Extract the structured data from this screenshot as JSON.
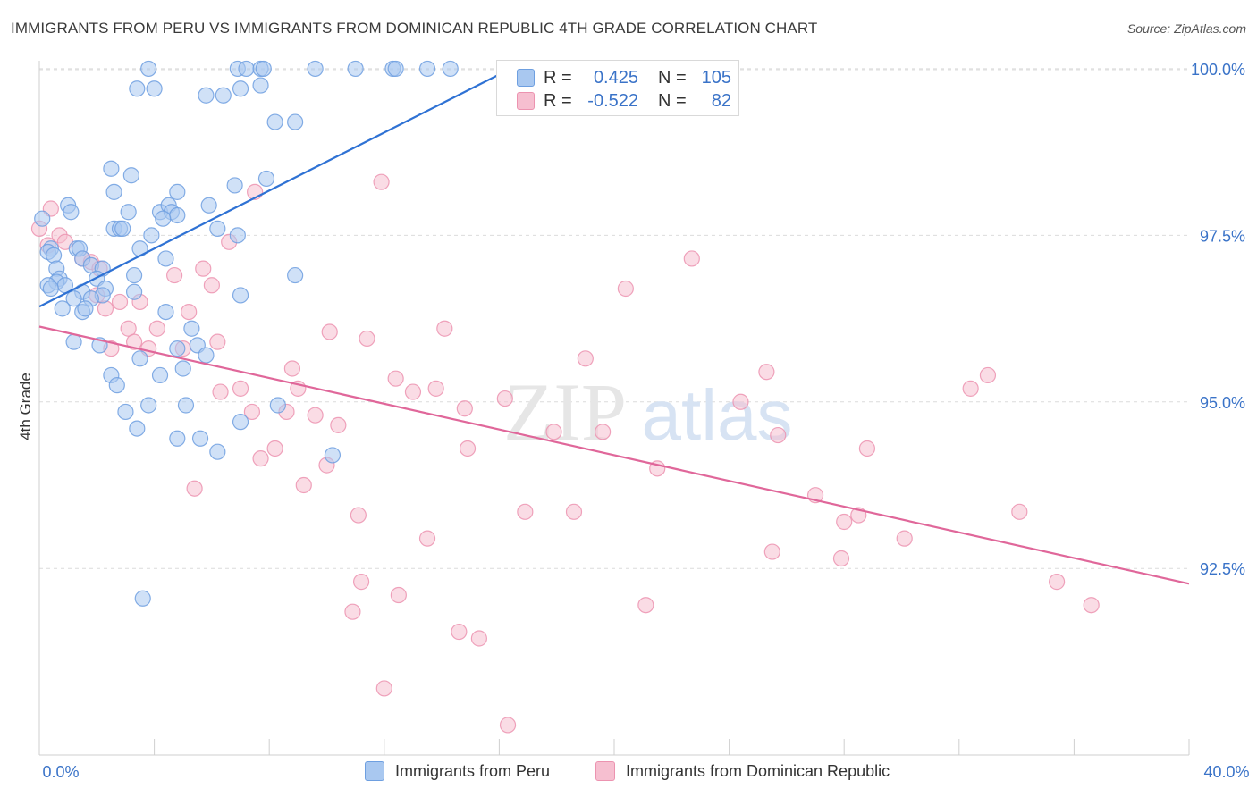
{
  "header": {
    "title": "IMMIGRANTS FROM PERU VS IMMIGRANTS FROM DOMINICAN REPUBLIC 4TH GRADE CORRELATION CHART",
    "source": "Source: ZipAtlas.com"
  },
  "legend": {
    "rows": [
      {
        "r_label": "R =",
        "r_value": "0.425",
        "n_label": "N =",
        "n_value": "105"
      },
      {
        "r_label": "R =",
        "r_value": "-0.522",
        "n_label": "N =",
        "n_value": "82"
      }
    ]
  },
  "colors": {
    "peru_fill": "#a9c8f0",
    "peru_stroke": "#6e9fe0",
    "peru_line": "#2f72d4",
    "dr_fill": "#f6bfd0",
    "dr_stroke": "#ec93b0",
    "dr_line": "#e0679a",
    "axis_text": "#3a73c8",
    "grid": "#dcdcdc"
  },
  "watermark": {
    "zip": "ZIP",
    "atlas": "atlas"
  },
  "chart_data": {
    "type": "scatter",
    "title": "IMMIGRANTS FROM PERU VS IMMIGRANTS FROM DOMINICAN REPUBLIC 4TH GRADE CORRELATION CHART",
    "xlabel": "",
    "ylabel": "4th Grade",
    "xlim": [
      0,
      40
    ],
    "ylim": [
      89.7,
      100.2
    ],
    "x_tick_labels": [
      "0.0%",
      "40.0%"
    ],
    "y_ticks": [
      92.5,
      95.0,
      97.5,
      100.0
    ],
    "y_tick_labels": [
      "92.5%",
      "95.0%",
      "97.5%",
      "100.0%"
    ],
    "legend_position": "top-center",
    "grid": true,
    "series": [
      {
        "name": "Immigrants from Peru",
        "trend": {
          "x": [
            0,
            16.4
          ],
          "y": [
            96.43,
            100.0
          ]
        },
        "points": [
          [
            3.8,
            100.0
          ],
          [
            4.0,
            99.7
          ],
          [
            6.9,
            100.0
          ],
          [
            7.2,
            100.0
          ],
          [
            7.7,
            100.0
          ],
          [
            7.8,
            100.0
          ],
          [
            9.6,
            100.0
          ],
          [
            11.0,
            100.0
          ],
          [
            12.3,
            100.0
          ],
          [
            12.4,
            100.0
          ],
          [
            13.5,
            100.0
          ],
          [
            14.3,
            100.0
          ],
          [
            16.4,
            100.0
          ],
          [
            3.4,
            99.7
          ],
          [
            5.8,
            99.6
          ],
          [
            6.4,
            99.6
          ],
          [
            7.0,
            99.7
          ],
          [
            7.7,
            99.75
          ],
          [
            8.2,
            99.2
          ],
          [
            8.9,
            99.2
          ],
          [
            2.5,
            98.5
          ],
          [
            3.2,
            98.4
          ],
          [
            2.6,
            98.15
          ],
          [
            4.8,
            98.15
          ],
          [
            6.8,
            98.25
          ],
          [
            7.9,
            98.35
          ],
          [
            1.0,
            97.95
          ],
          [
            1.1,
            97.85
          ],
          [
            3.1,
            97.85
          ],
          [
            4.2,
            97.85
          ],
          [
            4.5,
            97.95
          ],
          [
            4.6,
            97.85
          ],
          [
            4.8,
            97.8
          ],
          [
            5.9,
            97.95
          ],
          [
            4.3,
            97.75
          ],
          [
            0.1,
            97.75
          ],
          [
            2.6,
            97.6
          ],
          [
            2.8,
            97.6
          ],
          [
            2.9,
            97.6
          ],
          [
            3.9,
            97.5
          ],
          [
            6.2,
            97.6
          ],
          [
            6.9,
            97.5
          ],
          [
            0.4,
            97.3
          ],
          [
            1.3,
            97.3
          ],
          [
            1.4,
            97.3
          ],
          [
            3.5,
            97.3
          ],
          [
            0.3,
            97.25
          ],
          [
            0.5,
            97.2
          ],
          [
            1.5,
            97.15
          ],
          [
            4.4,
            97.15
          ],
          [
            0.6,
            97.0
          ],
          [
            1.8,
            97.05
          ],
          [
            2.2,
            97.0
          ],
          [
            3.3,
            96.9
          ],
          [
            8.9,
            96.9
          ],
          [
            0.7,
            96.85
          ],
          [
            0.6,
            96.8
          ],
          [
            0.9,
            96.75
          ],
          [
            2.0,
            96.85
          ],
          [
            0.3,
            96.75
          ],
          [
            0.4,
            96.7
          ],
          [
            1.5,
            96.65
          ],
          [
            2.3,
            96.7
          ],
          [
            3.3,
            96.65
          ],
          [
            2.2,
            96.6
          ],
          [
            1.2,
            96.55
          ],
          [
            1.8,
            96.55
          ],
          [
            7.0,
            96.6
          ],
          [
            0.8,
            96.4
          ],
          [
            1.5,
            96.35
          ],
          [
            1.6,
            96.4
          ],
          [
            4.4,
            96.35
          ],
          [
            5.3,
            96.1
          ],
          [
            1.2,
            95.9
          ],
          [
            2.1,
            95.85
          ],
          [
            5.5,
            95.85
          ],
          [
            4.8,
            95.8
          ],
          [
            3.5,
            95.65
          ],
          [
            5.8,
            95.7
          ],
          [
            5.0,
            95.5
          ],
          [
            2.5,
            95.4
          ],
          [
            4.2,
            95.4
          ],
          [
            2.7,
            95.25
          ],
          [
            3.0,
            94.85
          ],
          [
            3.8,
            94.95
          ],
          [
            5.1,
            94.95
          ],
          [
            8.3,
            94.95
          ],
          [
            7.0,
            94.7
          ],
          [
            3.4,
            94.6
          ],
          [
            4.8,
            94.45
          ],
          [
            5.6,
            94.45
          ],
          [
            6.2,
            94.25
          ],
          [
            10.2,
            94.2
          ],
          [
            3.6,
            92.05
          ]
        ]
      },
      {
        "name": "Immigrants from Dominican Republic",
        "trend": {
          "x": [
            0,
            40
          ],
          "y": [
            96.13,
            92.27
          ]
        },
        "points": [
          [
            0.4,
            97.9
          ],
          [
            0.0,
            97.6
          ],
          [
            0.7,
            97.5
          ],
          [
            0.3,
            97.35
          ],
          [
            0.9,
            97.4
          ],
          [
            1.5,
            97.15
          ],
          [
            1.8,
            97.1
          ],
          [
            2.1,
            97.0
          ],
          [
            5.7,
            97.0
          ],
          [
            4.7,
            96.9
          ],
          [
            6.0,
            96.75
          ],
          [
            2.0,
            96.6
          ],
          [
            2.8,
            96.5
          ],
          [
            3.5,
            96.5
          ],
          [
            2.3,
            96.4
          ],
          [
            5.2,
            96.35
          ],
          [
            11.9,
            98.3
          ],
          [
            7.5,
            98.15
          ],
          [
            6.6,
            97.4
          ],
          [
            22.7,
            97.15
          ],
          [
            20.4,
            96.7
          ],
          [
            3.1,
            96.1
          ],
          [
            4.1,
            96.1
          ],
          [
            10.1,
            96.05
          ],
          [
            14.1,
            96.1
          ],
          [
            11.4,
            95.95
          ],
          [
            3.3,
            95.9
          ],
          [
            6.2,
            95.9
          ],
          [
            2.5,
            95.8
          ],
          [
            3.8,
            95.8
          ],
          [
            5.0,
            95.8
          ],
          [
            19.0,
            95.65
          ],
          [
            8.8,
            95.5
          ],
          [
            12.4,
            95.35
          ],
          [
            25.3,
            95.45
          ],
          [
            33.0,
            95.4
          ],
          [
            32.4,
            95.2
          ],
          [
            13.0,
            95.15
          ],
          [
            13.8,
            95.2
          ],
          [
            9.0,
            95.2
          ],
          [
            7.0,
            95.2
          ],
          [
            6.3,
            95.15
          ],
          [
            16.2,
            95.05
          ],
          [
            24.4,
            95.0
          ],
          [
            14.8,
            94.9
          ],
          [
            7.4,
            94.85
          ],
          [
            8.6,
            94.85
          ],
          [
            9.6,
            94.8
          ],
          [
            10.4,
            94.65
          ],
          [
            17.9,
            94.55
          ],
          [
            19.6,
            94.55
          ],
          [
            25.7,
            94.5
          ],
          [
            8.2,
            94.3
          ],
          [
            14.9,
            94.3
          ],
          [
            28.8,
            94.3
          ],
          [
            7.7,
            94.15
          ],
          [
            10.0,
            94.05
          ],
          [
            9.2,
            93.75
          ],
          [
            21.5,
            94.0
          ],
          [
            5.4,
            93.7
          ],
          [
            27.0,
            93.6
          ],
          [
            11.1,
            93.3
          ],
          [
            16.9,
            93.35
          ],
          [
            18.6,
            93.35
          ],
          [
            28.5,
            93.3
          ],
          [
            34.1,
            93.35
          ],
          [
            28.0,
            93.2
          ],
          [
            13.5,
            92.95
          ],
          [
            25.5,
            92.75
          ],
          [
            30.1,
            92.95
          ],
          [
            27.9,
            92.65
          ],
          [
            11.2,
            92.3
          ],
          [
            12.5,
            92.1
          ],
          [
            35.4,
            92.3
          ],
          [
            21.1,
            91.95
          ],
          [
            36.6,
            91.95
          ],
          [
            10.9,
            91.85
          ],
          [
            14.6,
            91.55
          ],
          [
            15.3,
            91.45
          ],
          [
            12.0,
            90.7
          ],
          [
            16.3,
            90.15
          ]
        ]
      }
    ]
  }
}
